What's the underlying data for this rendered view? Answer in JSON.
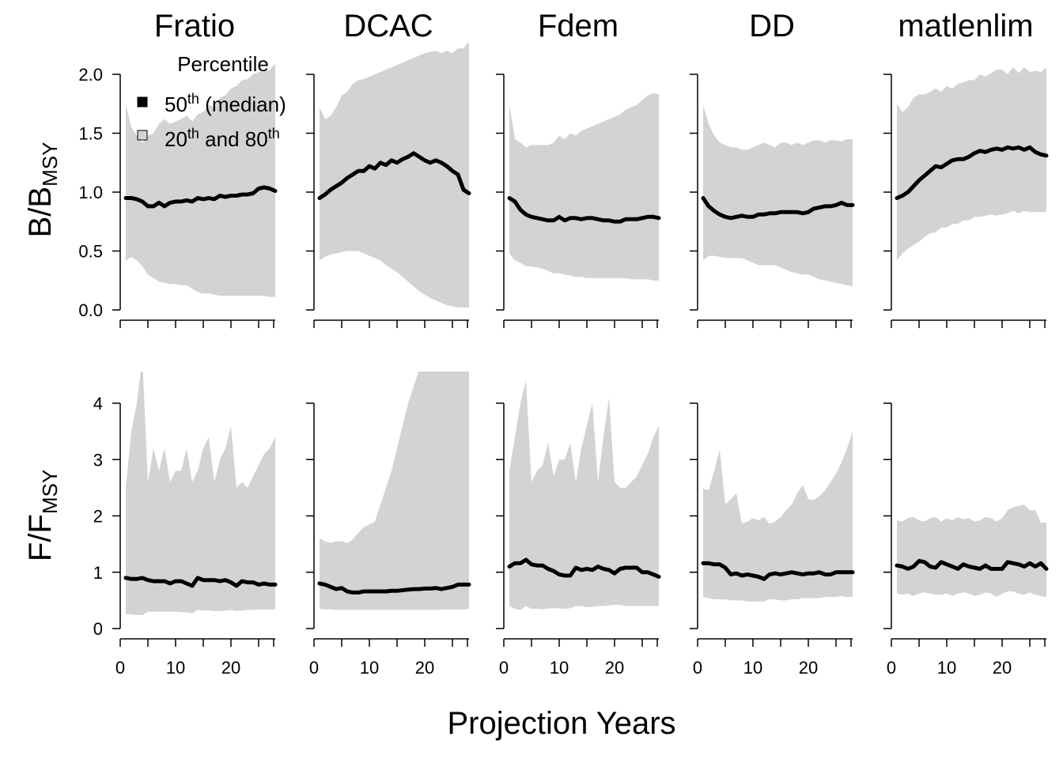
{
  "chart_data": {
    "type": "area",
    "x_label": "Projection Years",
    "panels": [
      "Fratio",
      "DCAC",
      "Fdem",
      "DD",
      "matlenlim"
    ],
    "rows": [
      {
        "key": "B",
        "ylabel": {
          "main": "B",
          "denom": "B",
          "sub": "MSY"
        },
        "ylim": [
          0,
          2
        ],
        "yticks": [
          0,
          0.5,
          1,
          1.5,
          2
        ],
        "ytick_labels": [
          "0.0",
          "0.5",
          "1.0",
          "1.5",
          "2.0"
        ]
      },
      {
        "key": "F",
        "ylabel": {
          "main": "F",
          "denom": "F",
          "sub": "MSY"
        },
        "ylim": [
          0,
          4
        ],
        "yticks": [
          0,
          1,
          2,
          3,
          4
        ],
        "ytick_labels": [
          "0",
          "1",
          "2",
          "3",
          "4"
        ]
      }
    ],
    "xlim": [
      0,
      28
    ],
    "xticks_major": [
      0,
      10,
      20
    ],
    "xticks_minor": [
      5,
      15,
      25
    ],
    "x": [
      1,
      2,
      3,
      4,
      5,
      6,
      7,
      8,
      9,
      10,
      11,
      12,
      13,
      14,
      15,
      16,
      17,
      18,
      19,
      20,
      21,
      22,
      23,
      24,
      25,
      26,
      27,
      28
    ],
    "series": {
      "B": {
        "Fratio": {
          "median": [
            0.95,
            0.95,
            0.94,
            0.92,
            0.88,
            0.88,
            0.91,
            0.88,
            0.91,
            0.92,
            0.92,
            0.93,
            0.92,
            0.95,
            0.94,
            0.95,
            0.94,
            0.97,
            0.96,
            0.97,
            0.97,
            0.98,
            0.98,
            0.99,
            1.03,
            1.04,
            1.03,
            1.01
          ],
          "p20": [
            0.42,
            0.45,
            0.42,
            0.37,
            0.3,
            0.27,
            0.24,
            0.23,
            0.22,
            0.22,
            0.21,
            0.21,
            0.18,
            0.15,
            0.14,
            0.14,
            0.13,
            0.12,
            0.12,
            0.12,
            0.12,
            0.12,
            0.12,
            0.12,
            0.12,
            0.12,
            0.11,
            0.11
          ],
          "p80": [
            1.74,
            1.55,
            1.48,
            1.42,
            1.48,
            1.5,
            1.58,
            1.62,
            1.58,
            1.6,
            1.62,
            1.65,
            1.6,
            1.66,
            1.68,
            1.74,
            1.72,
            1.8,
            1.82,
            1.88,
            1.9,
            1.95,
            1.96,
            2.0,
            2.02,
            2.02,
            2.04,
            2.09
          ]
        },
        "DCAC": {
          "median": [
            0.95,
            0.98,
            1.02,
            1.05,
            1.08,
            1.12,
            1.15,
            1.18,
            1.18,
            1.22,
            1.2,
            1.25,
            1.23,
            1.27,
            1.25,
            1.28,
            1.3,
            1.33,
            1.3,
            1.27,
            1.25,
            1.27,
            1.25,
            1.22,
            1.18,
            1.15,
            1.02,
            0.99
          ],
          "p20": [
            0.42,
            0.45,
            0.47,
            0.48,
            0.49,
            0.5,
            0.5,
            0.5,
            0.48,
            0.46,
            0.44,
            0.42,
            0.38,
            0.35,
            0.32,
            0.28,
            0.24,
            0.2,
            0.16,
            0.13,
            0.1,
            0.08,
            0.06,
            0.04,
            0.03,
            0.02,
            0.02,
            0.02
          ],
          "p80": [
            1.72,
            1.62,
            1.65,
            1.72,
            1.82,
            1.85,
            1.92,
            1.95,
            1.96,
            1.98,
            2.0,
            2.02,
            2.04,
            2.06,
            2.08,
            2.1,
            2.12,
            2.14,
            2.16,
            2.18,
            2.19,
            2.2,
            2.18,
            2.2,
            2.18,
            2.22,
            2.22,
            2.28
          ]
        },
        "Fdem": {
          "median": [
            0.95,
            0.92,
            0.85,
            0.81,
            0.79,
            0.78,
            0.77,
            0.76,
            0.76,
            0.79,
            0.76,
            0.78,
            0.78,
            0.77,
            0.78,
            0.78,
            0.77,
            0.76,
            0.76,
            0.75,
            0.75,
            0.77,
            0.77,
            0.77,
            0.78,
            0.79,
            0.79,
            0.78
          ],
          "p20": [
            0.48,
            0.42,
            0.4,
            0.37,
            0.37,
            0.36,
            0.35,
            0.33,
            0.31,
            0.31,
            0.3,
            0.29,
            0.28,
            0.28,
            0.27,
            0.27,
            0.27,
            0.27,
            0.27,
            0.27,
            0.27,
            0.27,
            0.26,
            0.26,
            0.26,
            0.26,
            0.25,
            0.25
          ],
          "p80": [
            1.75,
            1.45,
            1.42,
            1.38,
            1.4,
            1.4,
            1.4,
            1.4,
            1.42,
            1.48,
            1.45,
            1.5,
            1.48,
            1.52,
            1.54,
            1.56,
            1.58,
            1.6,
            1.62,
            1.64,
            1.66,
            1.7,
            1.72,
            1.74,
            1.78,
            1.82,
            1.84,
            1.83
          ]
        },
        "DD": {
          "median": [
            0.95,
            0.88,
            0.84,
            0.81,
            0.79,
            0.78,
            0.79,
            0.8,
            0.79,
            0.79,
            0.81,
            0.81,
            0.82,
            0.82,
            0.83,
            0.83,
            0.83,
            0.83,
            0.82,
            0.83,
            0.86,
            0.87,
            0.88,
            0.88,
            0.89,
            0.91,
            0.89,
            0.89
          ],
          "p20": [
            0.42,
            0.46,
            0.46,
            0.45,
            0.44,
            0.44,
            0.44,
            0.44,
            0.42,
            0.4,
            0.38,
            0.38,
            0.38,
            0.38,
            0.36,
            0.34,
            0.32,
            0.31,
            0.3,
            0.3,
            0.28,
            0.26,
            0.25,
            0.24,
            0.23,
            0.22,
            0.21,
            0.2
          ],
          "p80": [
            1.74,
            1.58,
            1.48,
            1.42,
            1.4,
            1.38,
            1.38,
            1.36,
            1.36,
            1.38,
            1.4,
            1.42,
            1.4,
            1.38,
            1.42,
            1.42,
            1.4,
            1.42,
            1.4,
            1.42,
            1.44,
            1.44,
            1.42,
            1.44,
            1.44,
            1.43,
            1.45,
            1.45
          ]
        },
        "matlenlim": {
          "median": [
            0.95,
            0.97,
            1.0,
            1.05,
            1.1,
            1.14,
            1.18,
            1.22,
            1.21,
            1.24,
            1.27,
            1.28,
            1.28,
            1.3,
            1.33,
            1.35,
            1.34,
            1.36,
            1.37,
            1.36,
            1.38,
            1.37,
            1.38,
            1.36,
            1.38,
            1.34,
            1.32,
            1.31
          ],
          "p20": [
            0.42,
            0.48,
            0.52,
            0.55,
            0.58,
            0.62,
            0.65,
            0.66,
            0.7,
            0.7,
            0.73,
            0.73,
            0.76,
            0.76,
            0.79,
            0.79,
            0.8,
            0.81,
            0.8,
            0.81,
            0.82,
            0.84,
            0.82,
            0.84,
            0.83,
            0.83,
            0.83,
            0.83
          ],
          "p80": [
            1.75,
            1.68,
            1.72,
            1.8,
            1.83,
            1.83,
            1.85,
            1.88,
            1.85,
            1.9,
            1.88,
            1.92,
            1.93,
            1.95,
            1.95,
            2.0,
            1.98,
            2.01,
            2.04,
            2.04,
            2.0,
            2.06,
            2.01,
            2.06,
            2.02,
            2.03,
            2.02,
            2.06
          ]
        }
      },
      "F": {
        "Fratio": {
          "median": [
            0.9,
            0.88,
            0.88,
            0.9,
            0.86,
            0.84,
            0.84,
            0.84,
            0.8,
            0.84,
            0.84,
            0.8,
            0.76,
            0.9,
            0.86,
            0.86,
            0.86,
            0.84,
            0.86,
            0.82,
            0.76,
            0.84,
            0.82,
            0.82,
            0.78,
            0.8,
            0.78,
            0.78
          ],
          "p20": [
            0.26,
            0.25,
            0.24,
            0.24,
            0.3,
            0.3,
            0.3,
            0.3,
            0.3,
            0.3,
            0.29,
            0.29,
            0.27,
            0.33,
            0.32,
            0.32,
            0.31,
            0.31,
            0.32,
            0.33,
            0.31,
            0.32,
            0.33,
            0.33,
            0.34,
            0.34,
            0.34,
            0.34
          ],
          "p80": [
            2.5,
            3.5,
            4.0,
            4.8,
            2.6,
            3.2,
            2.8,
            3.2,
            2.6,
            2.8,
            2.8,
            3.2,
            2.6,
            2.8,
            3.2,
            3.4,
            2.6,
            3.0,
            3.2,
            3.6,
            2.5,
            2.6,
            2.5,
            2.7,
            2.9,
            3.1,
            3.2,
            3.4
          ]
        },
        "DCAC": {
          "median": [
            0.8,
            0.78,
            0.74,
            0.7,
            0.72,
            0.66,
            0.64,
            0.64,
            0.66,
            0.66,
            0.66,
            0.66,
            0.66,
            0.67,
            0.67,
            0.68,
            0.69,
            0.7,
            0.7,
            0.71,
            0.71,
            0.72,
            0.7,
            0.72,
            0.74,
            0.78,
            0.78,
            0.78
          ],
          "p20": [
            0.35,
            0.34,
            0.34,
            0.33,
            0.33,
            0.33,
            0.33,
            0.33,
            0.33,
            0.33,
            0.33,
            0.33,
            0.33,
            0.33,
            0.33,
            0.33,
            0.33,
            0.33,
            0.33,
            0.33,
            0.33,
            0.33,
            0.34,
            0.34,
            0.34,
            0.34,
            0.34,
            0.35
          ],
          "p80": [
            1.6,
            1.55,
            1.52,
            1.55,
            1.55,
            1.52,
            1.58,
            1.7,
            1.8,
            1.85,
            1.9,
            2.2,
            2.5,
            2.8,
            3.2,
            3.6,
            4.0,
            4.3,
            4.6,
            5.0,
            5.2,
            5.3,
            5.4,
            5.5,
            5.5,
            5.5,
            5.5,
            5.5
          ]
        },
        "Fdem": {
          "median": [
            1.1,
            1.16,
            1.16,
            1.22,
            1.14,
            1.12,
            1.12,
            1.06,
            1.02,
            0.96,
            0.94,
            0.94,
            1.08,
            1.04,
            1.06,
            1.04,
            1.1,
            1.06,
            1.04,
            0.98,
            1.06,
            1.08,
            1.08,
            1.08,
            1.0,
            1.0,
            0.96,
            0.92
          ],
          "p20": [
            0.4,
            0.35,
            0.33,
            0.4,
            0.35,
            0.35,
            0.34,
            0.36,
            0.36,
            0.36,
            0.35,
            0.36,
            0.4,
            0.4,
            0.38,
            0.38,
            0.4,
            0.4,
            0.41,
            0.42,
            0.42,
            0.4,
            0.4,
            0.4,
            0.4,
            0.4,
            0.4,
            0.4
          ],
          "p80": [
            2.8,
            3.4,
            4.0,
            4.4,
            2.6,
            2.8,
            2.9,
            3.3,
            2.7,
            3.0,
            3.0,
            3.3,
            2.6,
            3.2,
            3.6,
            4.0,
            2.6,
            3.4,
            4.1,
            2.6,
            2.5,
            2.5,
            2.6,
            2.7,
            2.9,
            3.1,
            3.4,
            3.6
          ]
        },
        "DD": {
          "median": [
            1.16,
            1.16,
            1.14,
            1.14,
            1.08,
            0.96,
            0.98,
            0.94,
            0.96,
            0.94,
            0.92,
            0.88,
            0.96,
            0.98,
            0.96,
            0.98,
            1.0,
            0.98,
            0.96,
            0.98,
            0.98,
            1.0,
            0.96,
            0.96,
            1.0,
            1.0,
            1.0,
            1.0
          ],
          "p20": [
            0.56,
            0.54,
            0.52,
            0.52,
            0.52,
            0.5,
            0.5,
            0.5,
            0.48,
            0.48,
            0.48,
            0.48,
            0.52,
            0.52,
            0.5,
            0.5,
            0.52,
            0.52,
            0.54,
            0.54,
            0.54,
            0.54,
            0.56,
            0.56,
            0.56,
            0.58,
            0.56,
            0.56
          ],
          "p80": [
            2.48,
            2.46,
            2.8,
            3.18,
            2.2,
            2.3,
            2.4,
            1.86,
            1.9,
            1.96,
            1.92,
            1.98,
            1.86,
            1.9,
            1.98,
            2.1,
            2.2,
            2.4,
            2.55,
            2.3,
            2.28,
            2.35,
            2.45,
            2.6,
            2.75,
            2.95,
            3.2,
            3.5
          ]
        },
        "matlenlim": {
          "median": [
            1.12,
            1.1,
            1.06,
            1.1,
            1.2,
            1.18,
            1.1,
            1.08,
            1.18,
            1.14,
            1.1,
            1.06,
            1.14,
            1.1,
            1.08,
            1.06,
            1.12,
            1.06,
            1.06,
            1.06,
            1.18,
            1.16,
            1.14,
            1.1,
            1.16,
            1.1,
            1.16,
            1.06
          ],
          "p20": [
            0.62,
            0.6,
            0.62,
            0.58,
            0.62,
            0.64,
            0.62,
            0.6,
            0.6,
            0.62,
            0.58,
            0.62,
            0.64,
            0.62,
            0.58,
            0.6,
            0.64,
            0.62,
            0.56,
            0.62,
            0.66,
            0.66,
            0.62,
            0.6,
            0.64,
            0.6,
            0.58,
            0.56
          ],
          "p80": [
            1.92,
            1.9,
            1.96,
            1.98,
            1.92,
            1.9,
            1.96,
            1.98,
            1.9,
            1.96,
            1.92,
            1.98,
            1.94,
            1.96,
            1.9,
            1.92,
            1.98,
            1.96,
            1.9,
            1.96,
            2.1,
            2.15,
            2.18,
            2.2,
            2.1,
            2.1,
            1.88,
            1.88
          ]
        }
      }
    },
    "legend": {
      "title": "Percentile",
      "median_label": {
        "base": "50",
        "sup": "th",
        "rest": " (median)"
      },
      "band_label": {
        "base1": "20",
        "sup1": "th",
        "mid": " and 80",
        "sup2": "th"
      },
      "position": "top-left of first panel"
    },
    "colors": {
      "band": "#d3d3d3",
      "median": "#000000"
    }
  }
}
